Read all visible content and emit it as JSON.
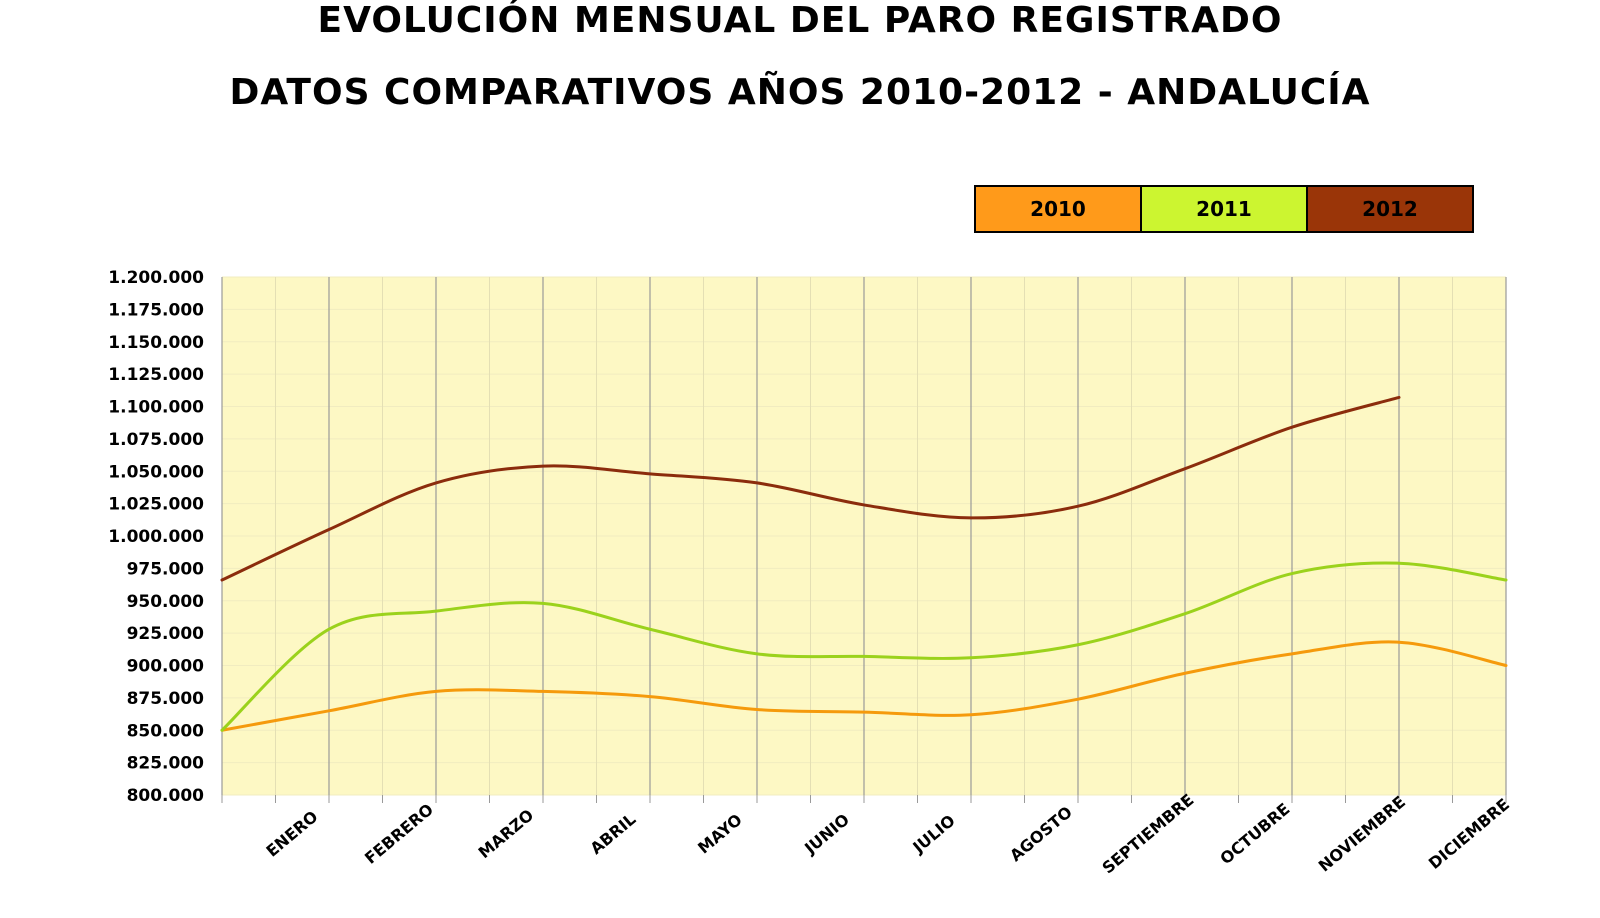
{
  "chart_data": {
    "type": "line",
    "title": "EVOLUCIÓN MENSUAL DEL PARO REGISTRADO",
    "subtitle": "DATOS COMPARATIVOS AÑOS 2010-2012 - ANDALUCÍA",
    "categories": [
      "ENERO",
      "FEBRERO",
      "MARZO",
      "ABRIL",
      "MAYO",
      "JUNIO",
      "JULIO",
      "AGOSTO",
      "SEPTIEMBRE",
      "OCTUBRE",
      "NOVIEMBRE",
      "DICIEMBRE"
    ],
    "y_ticks": [
      "800.000",
      "825.000",
      "850.000",
      "875.000",
      "900.000",
      "925.000",
      "950.000",
      "975.000",
      "1.000.000",
      "1.025.000",
      "1.050.000",
      "1.075.000",
      "1.100.000",
      "1.125.000",
      "1.150.000",
      "1.175.000",
      "1.200.000"
    ],
    "ylim": [
      800000,
      1200000
    ],
    "x": [
      0,
      1,
      2,
      3,
      4,
      5,
      6,
      7,
      8,
      9,
      10,
      11,
      12
    ],
    "series": [
      {
        "name": "2010",
        "color": "#f59a0c",
        "values": [
          850000,
          865000,
          880000,
          880000,
          876000,
          866000,
          864000,
          862000,
          874000,
          894000,
          909000,
          918000,
          900000
        ]
      },
      {
        "name": "2011",
        "color": "#9bd21c",
        "values": [
          850000,
          928000,
          942000,
          948000,
          928000,
          909000,
          907000,
          906000,
          916000,
          940000,
          971000,
          979000,
          966000
        ]
      },
      {
        "name": "2012",
        "color": "#8b2c0c",
        "values": [
          966000,
          1005000,
          1041000,
          1054000,
          1048000,
          1041000,
          1024000,
          1014000,
          1023000,
          1052000,
          1084000,
          1107000
        ]
      }
    ],
    "legend_colors": [
      "#ff9a1a",
      "#ccf530",
      "#9a3508"
    ],
    "legend_placement": "top-right",
    "grid": true,
    "plot_background": "#fdf8c4"
  }
}
